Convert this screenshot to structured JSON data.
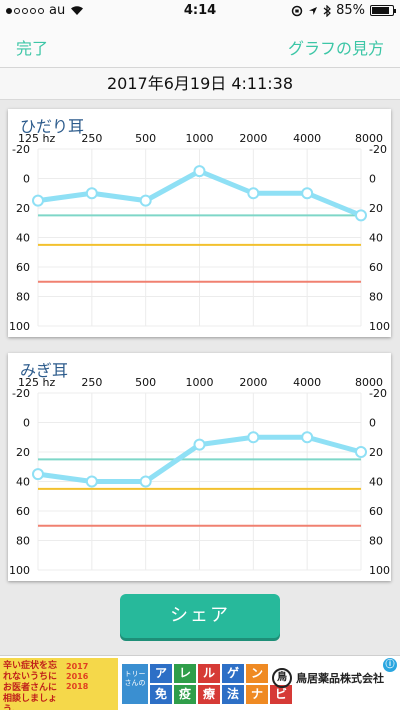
{
  "status_bar": {
    "carrier": "au",
    "time": "4:14",
    "battery_pct": 85,
    "battery_label": "85%"
  },
  "nav": {
    "left_label": "完了",
    "right_label": "グラフの見方"
  },
  "date_label": "2017年6月19日 4:11:38",
  "chart_data": [
    {
      "type": "line",
      "title": "ひだり耳",
      "categories": [
        "125 hz",
        "250",
        "500",
        "1000",
        "2000",
        "4000",
        "8000"
      ],
      "values": [
        15,
        10,
        15,
        -5,
        10,
        10,
        25
      ],
      "ylim": [
        -20,
        100
      ],
      "y_inverted": true,
      "yticks": [
        "-20",
        "0",
        "20",
        "40",
        "60",
        "80",
        "100"
      ],
      "reference_lines": [
        {
          "value": 25,
          "color": "#7ed6c8"
        },
        {
          "value": 45,
          "color": "#f2c12e"
        },
        {
          "value": 70,
          "color": "#f08070"
        }
      ],
      "line_color": "#8fe0f5",
      "grid": true
    },
    {
      "type": "line",
      "title": "みぎ耳",
      "categories": [
        "125 hz",
        "250",
        "500",
        "1000",
        "2000",
        "4000",
        "8000"
      ],
      "values": [
        35,
        40,
        40,
        15,
        10,
        10,
        20
      ],
      "ylim": [
        -20,
        100
      ],
      "y_inverted": true,
      "yticks": [
        "-20",
        "0",
        "20",
        "40",
        "60",
        "80",
        "100"
      ],
      "reference_lines": [
        {
          "value": 25,
          "color": "#7ed6c8"
        },
        {
          "value": 45,
          "color": "#f2c12e"
        },
        {
          "value": 70,
          "color": "#f08070"
        }
      ],
      "line_color": "#8fe0f5",
      "grid": true
    }
  ],
  "share_label": "シェア",
  "ad": {
    "left_text": "辛い症状を忘れないうちにお医者さんに相談しましょう。",
    "years": [
      "2017",
      "2016",
      "2018"
    ],
    "torry_label": "トリーさんの",
    "row1": [
      "ア",
      "レ",
      "ル",
      "ゲ",
      "ン"
    ],
    "row2": [
      "免",
      "疫",
      "療",
      "法",
      "ナ",
      "ビ"
    ],
    "company": "鳥居薬品株式会社",
    "logo_char": "鳥",
    "info_icon": "ⓘ"
  },
  "colors": {
    "accent": "#3cc6a6",
    "share_button": "#27b99b",
    "title_text": "#2c5b8c"
  }
}
